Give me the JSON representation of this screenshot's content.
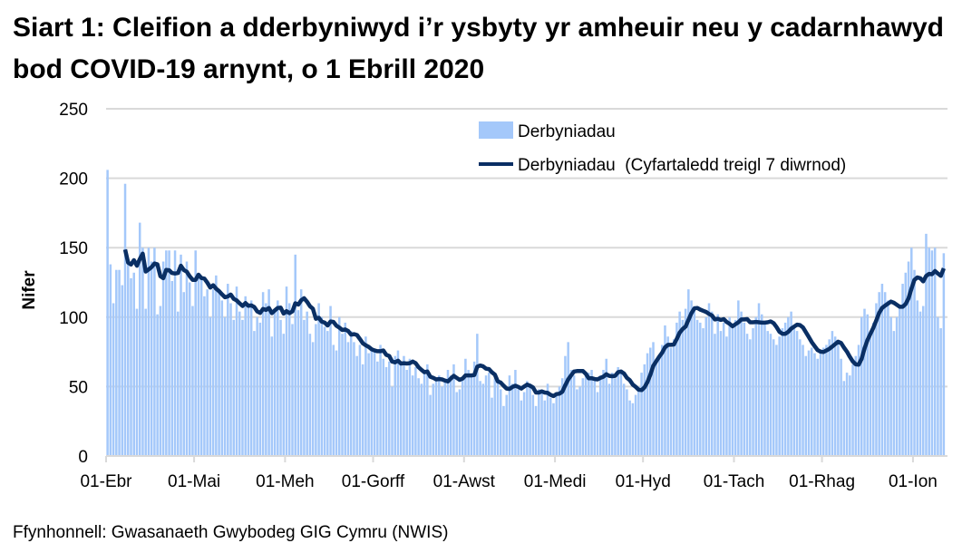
{
  "chart_data": {
    "type": "bar",
    "title": "Siart 1: Cleifion a dderbyniwyd i’r ysbyty yr amheuir neu y cadarnhawyd bod COVID-19 arnynt, o 1 Ebrill 2020",
    "ylabel": "Nifer",
    "xlabel": "",
    "ylim": [
      0,
      250
    ],
    "yticks": [
      0,
      50,
      100,
      150,
      200,
      250
    ],
    "grid": true,
    "legend_position": "top-right",
    "start_date": "2020-04-01",
    "xtick_labels": [
      "01-Ebr",
      "01-Mai",
      "01-Meh",
      "01-Gorff",
      "01-Awst",
      "01-Medi",
      "01-Hyd",
      "01-Tach",
      "01-Rhag",
      "01-Ion"
    ],
    "xtick_day_index": [
      0,
      30,
      61,
      91,
      122,
      153,
      183,
      214,
      244,
      275
    ],
    "series": [
      {
        "name": "Derbyniadau",
        "type": "bar",
        "color": "#a4c8fa",
        "values": [
          206,
          138,
          110,
          134,
          134,
          123,
          196,
          140,
          128,
          132,
          106,
          168,
          150,
          106,
          150,
          140,
          150,
          102,
          108,
          140,
          148,
          148,
          126,
          148,
          104,
          145,
          118,
          140,
          125,
          108,
          148,
          130,
          128,
          115,
          120,
          100,
          120,
          130,
          118,
          112,
          100,
          124,
          110,
          98,
          122,
          104,
          98,
          115,
          110,
          112,
          90,
          100,
          96,
          118,
          110,
          120,
          86,
          104,
          112,
          98,
          88,
          122,
          110,
          95,
          145,
          105,
          120,
          98,
          104,
          88,
          82,
          95,
          110,
          100,
          93,
          90,
          108,
          80,
          76,
          100,
          88,
          96,
          82,
          90,
          82,
          72,
          80,
          66,
          86,
          74,
          78,
          76,
          68,
          80,
          70,
          64,
          68,
          50,
          72,
          76,
          66,
          72,
          62,
          70,
          58,
          64,
          56,
          52,
          60,
          66,
          44,
          52,
          56,
          58,
          50,
          54,
          62,
          58,
          66,
          46,
          48,
          56,
          70,
          62,
          58,
          68,
          88,
          54,
          52,
          58,
          60,
          42,
          56,
          54,
          48,
          36,
          44,
          58,
          52,
          62,
          48,
          40,
          46,
          54,
          52,
          44,
          36,
          48,
          46,
          40,
          52,
          42,
          38,
          46,
          50,
          56,
          72,
          82,
          62,
          58,
          48,
          50,
          56,
          58,
          60,
          62,
          54,
          46,
          58,
          62,
          70,
          52,
          60,
          56,
          64,
          62,
          52,
          48,
          40,
          38,
          44,
          50,
          60,
          66,
          74,
          78,
          82,
          68,
          72,
          80,
          94,
          86,
          78,
          84,
          96,
          104,
          98,
          106,
          120,
          112,
          108,
          98,
          96,
          92,
          100,
          110,
          104,
          88,
          102,
          90,
          96,
          86,
          100,
          92,
          98,
          112,
          104,
          96,
          88,
          84,
          92,
          100,
          110,
          102,
          96,
          90,
          88,
          84,
          80,
          86,
          92,
          96,
          100,
          104,
          94,
          90,
          84,
          80,
          72,
          76,
          78,
          74,
          70,
          76,
          78,
          80,
          84,
          90,
          86,
          82,
          70,
          54,
          60,
          58,
          66,
          72,
          80,
          100,
          106,
          102,
          90,
          96,
          110,
          118,
          124,
          118,
          112,
          100,
          90,
          100,
          108,
          124,
          132,
          140,
          150,
          134,
          112,
          104,
          108,
          160,
          150,
          148,
          150,
          100,
          92,
          146
        ]
      },
      {
        "name": "Derbyniadau  (Cyfartaledd treigl 7 diwrnod)",
        "type": "line",
        "color": "#0a2f64",
        "rolling_window_days": 7
      }
    ]
  },
  "source": "Ffynhonnell: Gwasanaeth Gwybodeg GIG Cymru (NWIS)"
}
